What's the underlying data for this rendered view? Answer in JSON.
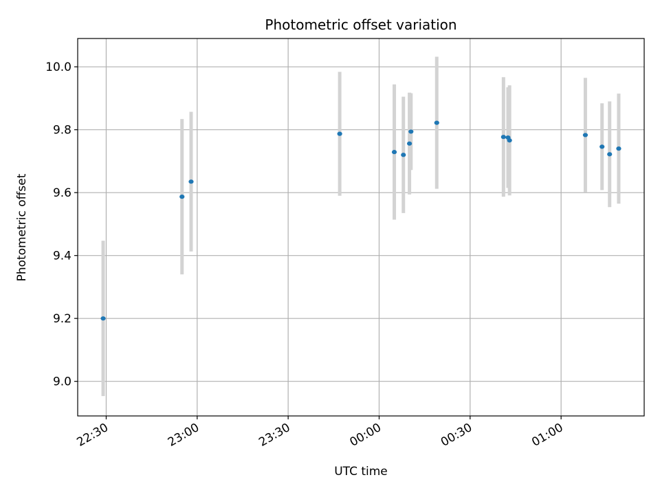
{
  "chart_data": {
    "type": "scatter",
    "title": "Photometric offset variation",
    "xlabel": "UTC time",
    "ylabel": "Photometric offset",
    "x_ticks": [
      "22:30",
      "23:00",
      "23:30",
      "00:00",
      "00:30",
      "01:00"
    ],
    "y_ticks": [
      "9.0",
      "9.2",
      "9.4",
      "9.6",
      "9.8",
      "10.0"
    ],
    "xlim": [
      "22:20:36",
      "01:27:24"
    ],
    "ylim": [
      8.89,
      10.09
    ],
    "grid": true,
    "errorbar_color": "#d3d3d3",
    "point_color": "#1f77b4",
    "points": [
      {
        "time": "22:29:00",
        "value": 9.2,
        "err": 0.247
      },
      {
        "time": "22:55:00",
        "value": 9.587,
        "err": 0.247
      },
      {
        "time": "22:58:00",
        "value": 9.635,
        "err": 0.222
      },
      {
        "time": "23:47:00",
        "value": 9.787,
        "err": 0.197
      },
      {
        "time": "00:05:00",
        "value": 9.729,
        "err": 0.215
      },
      {
        "time": "00:08:00",
        "value": 9.72,
        "err": 0.185
      },
      {
        "time": "00:10:00",
        "value": 9.756,
        "err": 0.162
      },
      {
        "time": "00:10:30",
        "value": 9.794,
        "err": 0.122
      },
      {
        "time": "00:19:00",
        "value": 9.822,
        "err": 0.21
      },
      {
        "time": "00:41:00",
        "value": 9.777,
        "err": 0.19
      },
      {
        "time": "00:42:30",
        "value": 9.775,
        "err": 0.16
      },
      {
        "time": "00:43:00",
        "value": 9.766,
        "err": 0.175
      },
      {
        "time": "01:08:00",
        "value": 9.783,
        "err": 0.182
      },
      {
        "time": "01:13:30",
        "value": 9.746,
        "err": 0.138
      },
      {
        "time": "01:16:00",
        "value": 9.722,
        "err": 0.168
      },
      {
        "time": "01:19:00",
        "value": 9.74,
        "err": 0.175
      }
    ]
  }
}
